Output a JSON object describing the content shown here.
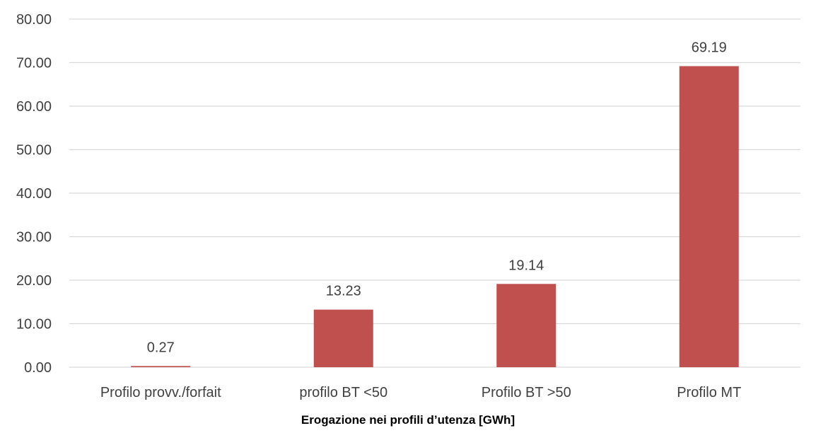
{
  "chart_data": {
    "type": "bar",
    "title": "",
    "xlabel": "Erogazione nei profili d’utenza [GWh]",
    "ylabel": "",
    "categories": [
      "Profilo provv./forfait",
      "profilo BT <50",
      "Profilo BT >50",
      "Profilo MT"
    ],
    "series": [
      {
        "values": [
          0.27,
          13.23,
          19.14,
          69.19
        ]
      }
    ],
    "data_labels": [
      "0.27",
      "13.23",
      "19.14",
      "69.19"
    ],
    "ylim": [
      0,
      80
    ],
    "y_ticks": [
      "0.00",
      "10.00",
      "20.00",
      "30.00",
      "40.00",
      "50.00",
      "60.00",
      "70.00",
      "80.00"
    ],
    "y_tick_values": [
      0,
      10,
      20,
      30,
      40,
      50,
      60,
      70,
      80
    ],
    "grid": true,
    "legend": "none",
    "colors": {
      "bar": "#c0504d",
      "grid": "#d9d9d9",
      "text": "#404040"
    }
  }
}
